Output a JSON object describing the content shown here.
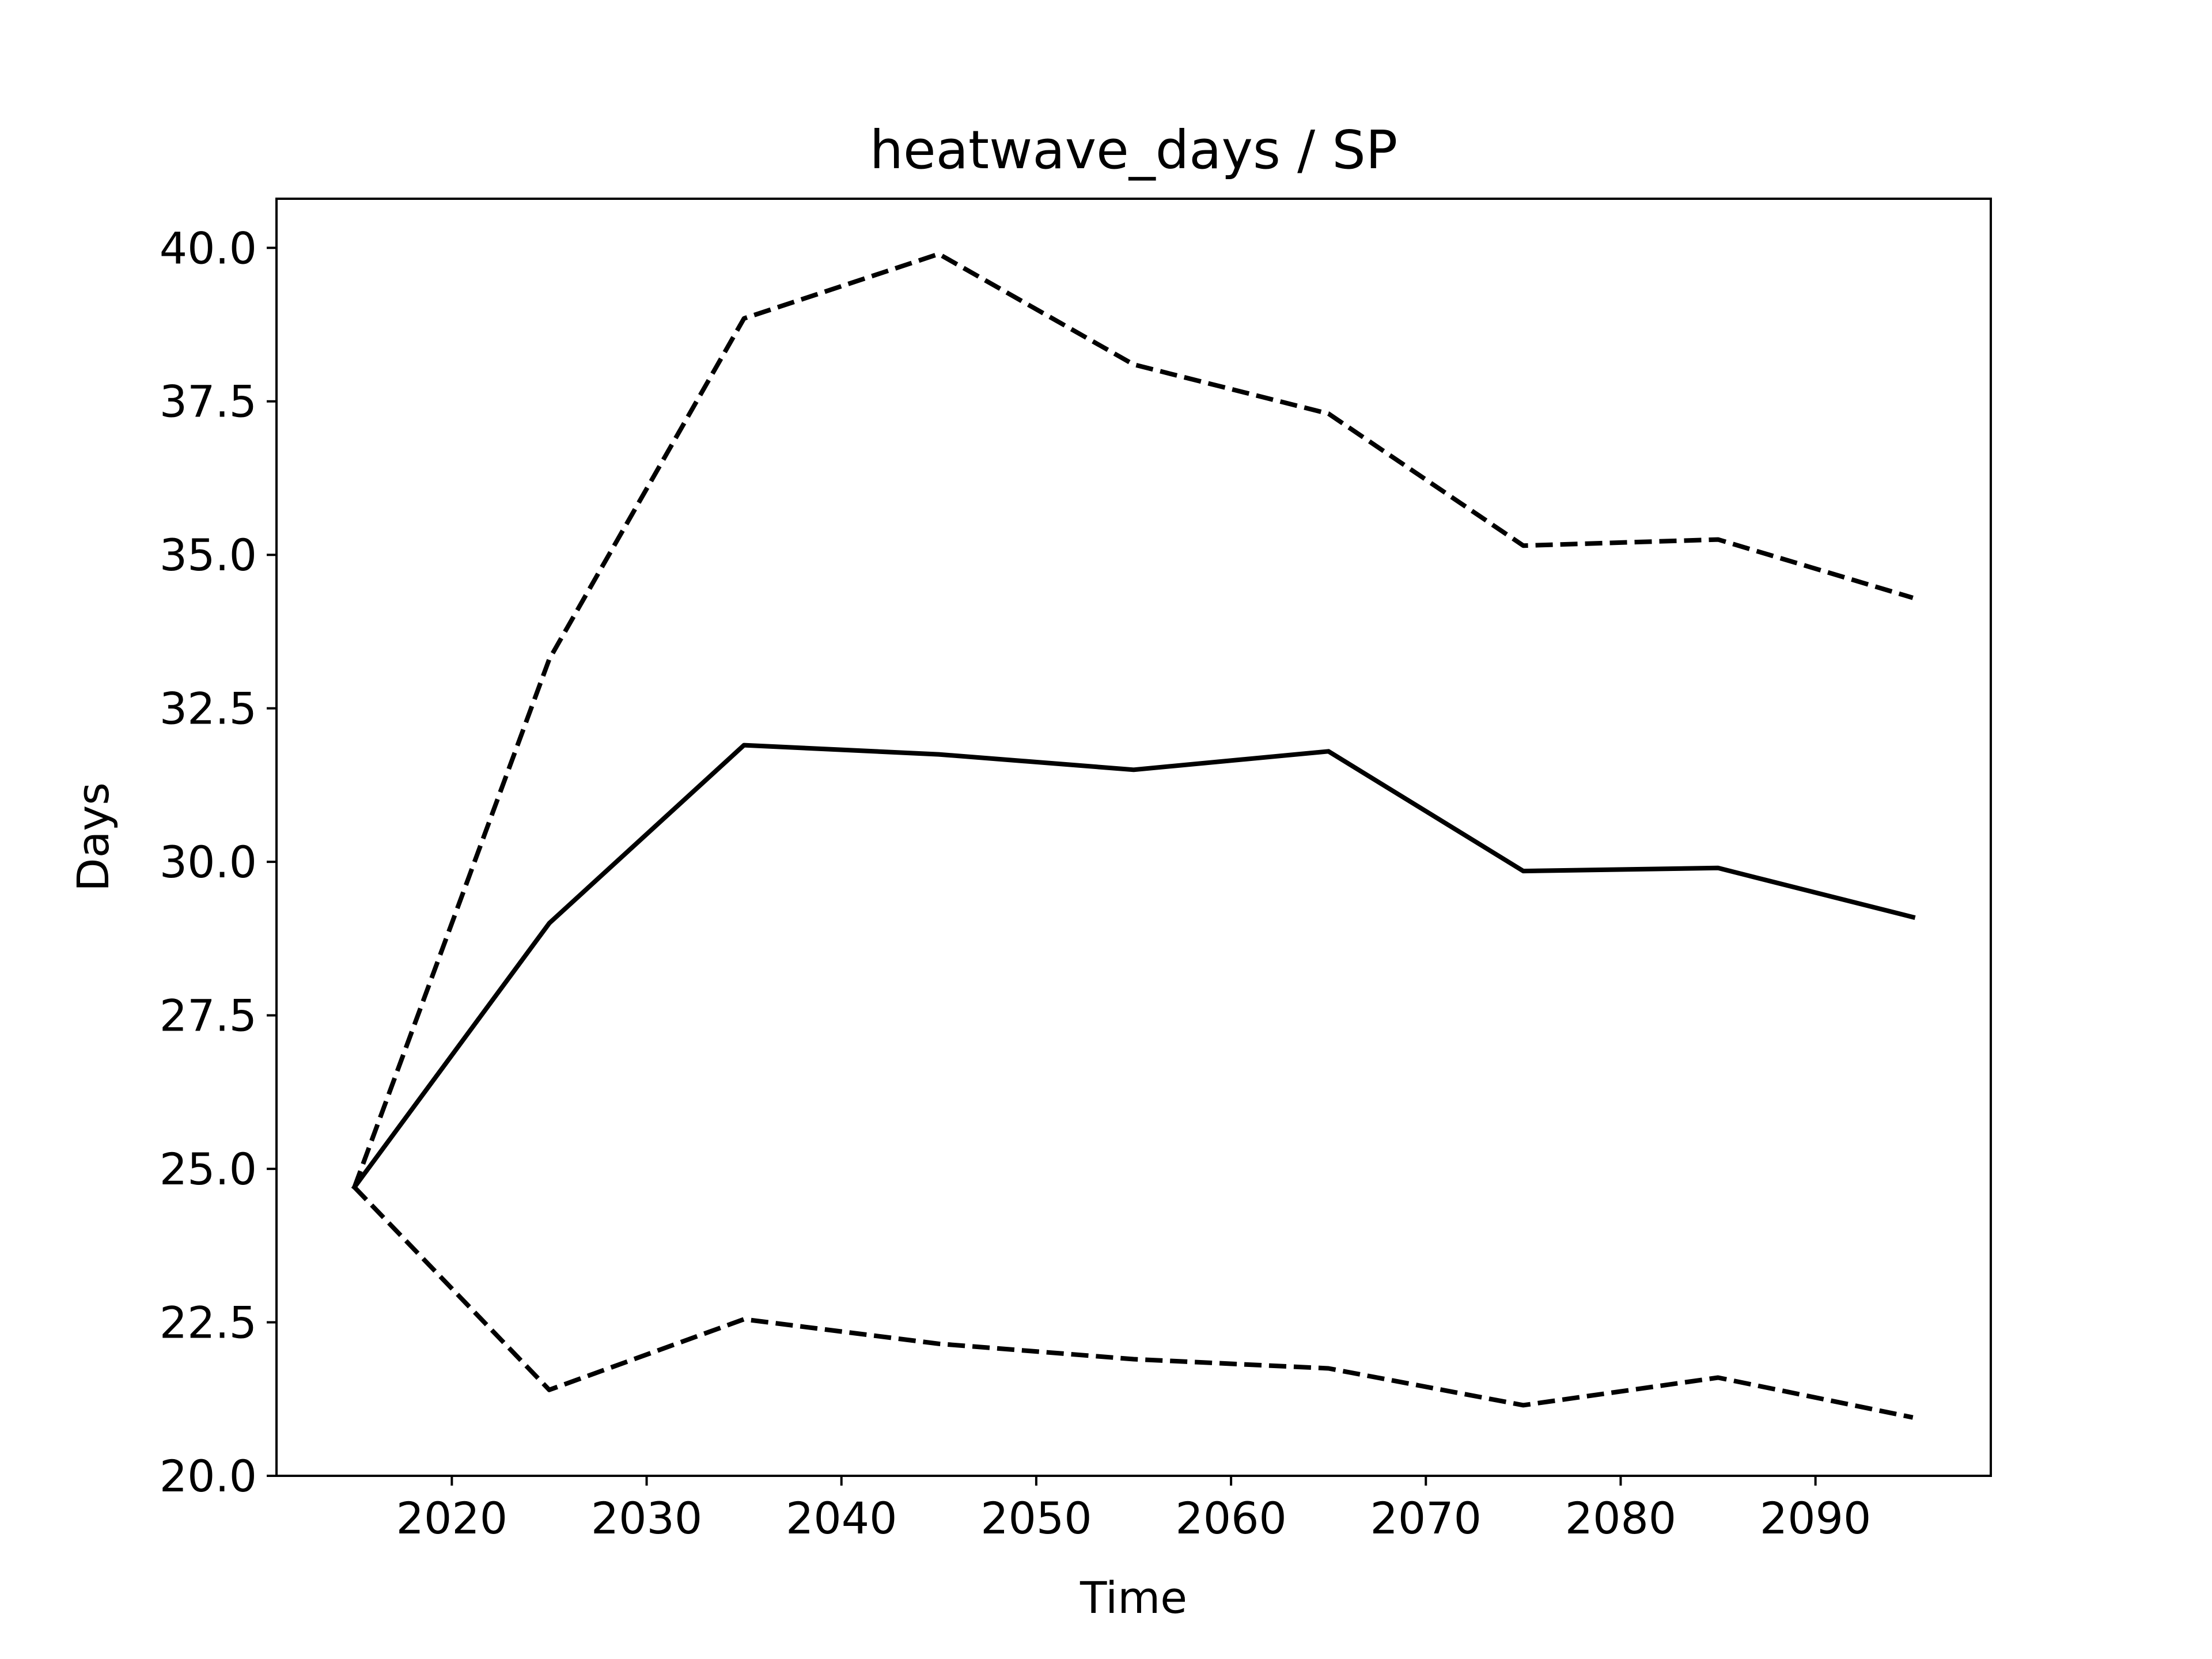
{
  "chart_data": {
    "type": "line",
    "title": "heatwave_days / SP",
    "xlabel": "Time",
    "ylabel": "Days",
    "x": [
      2015,
      2025,
      2035,
      2045,
      2055,
      2065,
      2075,
      2085,
      2095
    ],
    "xlim": [
      2011,
      2099
    ],
    "ylim": [
      20.0,
      40.8
    ],
    "xticks": [
      2020,
      2030,
      2040,
      2050,
      2060,
      2070,
      2080,
      2090
    ],
    "yticks": [
      20.0,
      22.5,
      25.0,
      27.5,
      30.0,
      32.5,
      35.0,
      37.5,
      40.0
    ],
    "ytick_format": "one-decimal",
    "grid": false,
    "legend": "none",
    "series": [
      {
        "style": "dashed",
        "color": "#000000",
        "values": [
          24.7,
          33.3,
          38.85,
          39.9,
          38.1,
          37.3,
          35.15,
          35.25,
          34.3
        ]
      },
      {
        "style": "solid",
        "color": "#000000",
        "values": [
          24.7,
          29.0,
          31.9,
          31.75,
          31.5,
          31.8,
          29.85,
          29.9,
          29.1
        ]
      },
      {
        "style": "dashed",
        "color": "#000000",
        "values": [
          24.7,
          21.4,
          22.55,
          22.15,
          21.9,
          21.75,
          21.15,
          21.6,
          20.95
        ]
      }
    ]
  }
}
